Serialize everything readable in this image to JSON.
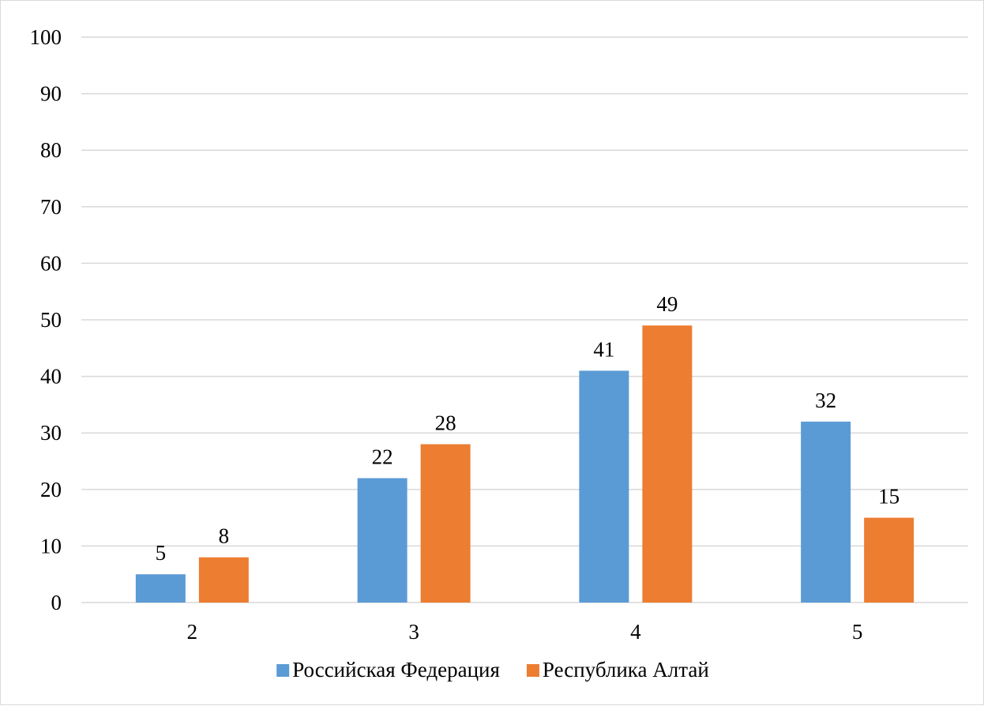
{
  "chart_data": {
    "type": "bar",
    "categories": [
      "2",
      "3",
      "4",
      "5"
    ],
    "series": [
      {
        "name": "Российская Федерация",
        "color": "#5b9bd5",
        "values": [
          5,
          22,
          41,
          32
        ]
      },
      {
        "name": "Республика Алтай",
        "color": "#ed7d31",
        "values": [
          8,
          28,
          49,
          15
        ]
      }
    ],
    "y_ticks": [
      "0",
      "10",
      "20",
      "30",
      "40",
      "50",
      "60",
      "70",
      "80",
      "90",
      "100"
    ],
    "ylim": [
      0,
      100
    ],
    "grid": true,
    "legend": "bottom-center",
    "data_labels": true
  }
}
